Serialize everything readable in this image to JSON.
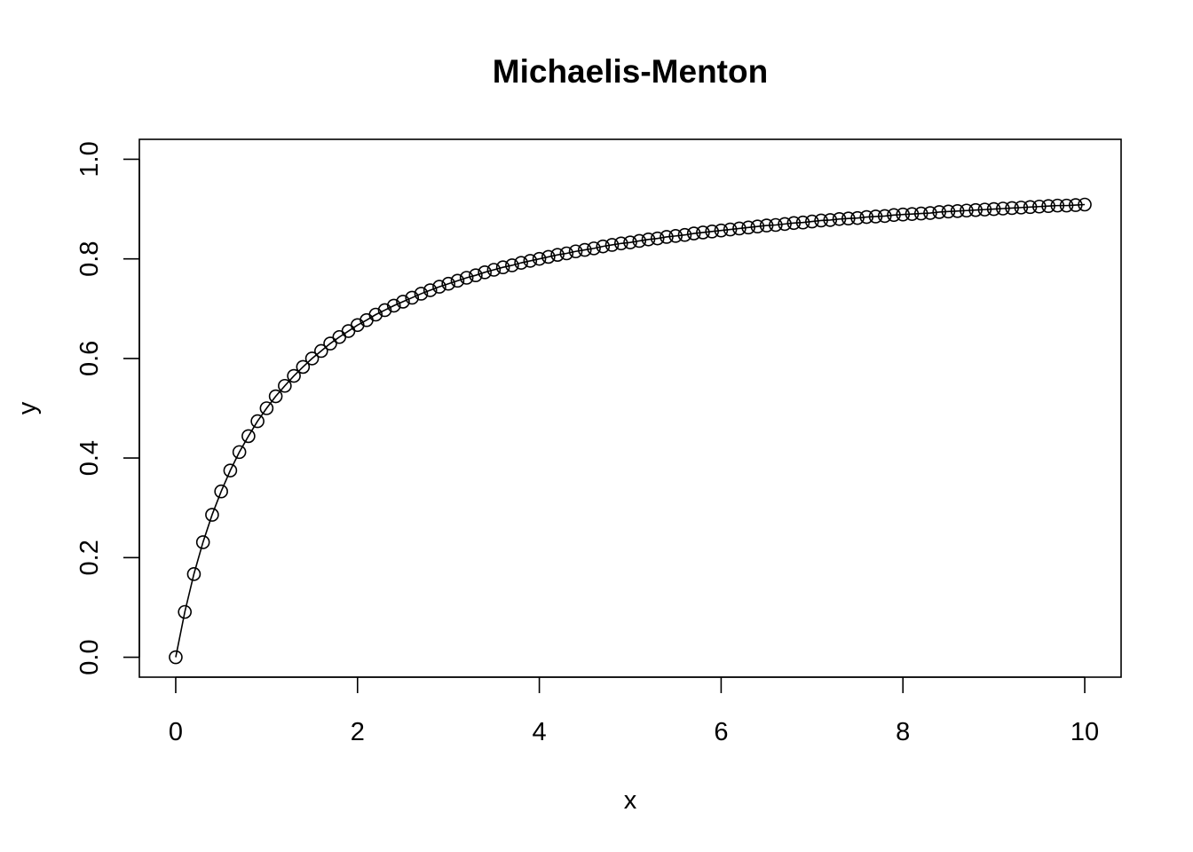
{
  "chart_data": {
    "type": "line",
    "title": "Michaelis-Menton",
    "xlabel": "x",
    "ylabel": "y",
    "xlim": [
      -0.4,
      10.4
    ],
    "ylim": [
      -0.04,
      1.04
    ],
    "x_ticks": [
      0,
      2,
      4,
      6,
      8,
      10
    ],
    "x_tick_labels": [
      "0",
      "2",
      "4",
      "6",
      "8",
      "10"
    ],
    "y_ticks": [
      0.0,
      0.2,
      0.4,
      0.6,
      0.8,
      1.0
    ],
    "y_tick_labels": [
      "0.0",
      "0.2",
      "0.4",
      "0.6",
      "0.8",
      "1.0"
    ],
    "grid": false,
    "legend": "none",
    "marker": "open-circle",
    "series": [
      {
        "x": [
          0.0,
          0.1,
          0.2,
          0.3,
          0.4,
          0.5,
          0.6,
          0.7,
          0.8,
          0.9,
          1.0,
          1.1,
          1.2,
          1.3,
          1.4,
          1.5,
          1.6,
          1.7,
          1.8,
          1.9,
          2.0,
          2.1,
          2.2,
          2.3,
          2.4,
          2.5,
          2.6,
          2.7,
          2.8,
          2.9,
          3.0,
          3.1,
          3.2,
          3.3,
          3.4,
          3.5,
          3.6,
          3.7,
          3.8,
          3.9,
          4.0,
          4.1,
          4.2,
          4.3,
          4.4,
          4.5,
          4.6,
          4.7,
          4.8,
          4.9,
          5.0,
          5.1,
          5.2,
          5.3,
          5.4,
          5.5,
          5.6,
          5.7,
          5.8,
          5.9,
          6.0,
          6.1,
          6.2,
          6.3,
          6.4,
          6.5,
          6.6,
          6.7,
          6.8,
          6.9,
          7.0,
          7.1,
          7.2,
          7.3,
          7.4,
          7.5,
          7.6,
          7.7,
          7.8,
          7.9,
          8.0,
          8.1,
          8.2,
          8.3,
          8.4,
          8.5,
          8.6,
          8.7,
          8.8,
          8.9,
          9.0,
          9.1,
          9.2,
          9.3,
          9.4,
          9.5,
          9.6,
          9.7,
          9.8,
          9.9,
          10.0
        ],
        "y": [
          0.0,
          0.091,
          0.167,
          0.231,
          0.286,
          0.333,
          0.375,
          0.412,
          0.444,
          0.474,
          0.5,
          0.524,
          0.545,
          0.565,
          0.583,
          0.6,
          0.615,
          0.63,
          0.643,
          0.655,
          0.667,
          0.677,
          0.688,
          0.697,
          0.706,
          0.714,
          0.722,
          0.73,
          0.737,
          0.744,
          0.75,
          0.756,
          0.762,
          0.767,
          0.773,
          0.778,
          0.783,
          0.787,
          0.792,
          0.796,
          0.8,
          0.804,
          0.808,
          0.811,
          0.815,
          0.818,
          0.821,
          0.825,
          0.828,
          0.831,
          0.833,
          0.836,
          0.839,
          0.841,
          0.844,
          0.846,
          0.848,
          0.851,
          0.853,
          0.855,
          0.857,
          0.859,
          0.861,
          0.863,
          0.865,
          0.867,
          0.868,
          0.87,
          0.872,
          0.873,
          0.875,
          0.877,
          0.878,
          0.88,
          0.881,
          0.882,
          0.884,
          0.885,
          0.886,
          0.888,
          0.889,
          0.89,
          0.891,
          0.892,
          0.894,
          0.895,
          0.896,
          0.897,
          0.898,
          0.899,
          0.9,
          0.901,
          0.902,
          0.903,
          0.904,
          0.905,
          0.906,
          0.907,
          0.907,
          0.908,
          0.909
        ]
      }
    ]
  }
}
